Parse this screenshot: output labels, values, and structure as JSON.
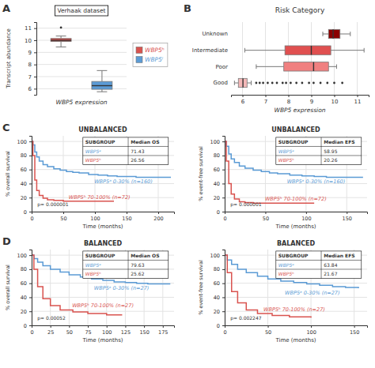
{
  "chart_data": [
    {
      "type": "box",
      "title": "Verhaak dataset",
      "xlabel": "WBP5 expression",
      "ylabel": "Transcript abundance",
      "panel_label": "A",
      "ylim": [
        5.5,
        11.5
      ],
      "yticks": [
        6,
        7,
        8,
        9,
        10,
        11
      ],
      "grid": "y",
      "legend": "right",
      "tick_labels": "y",
      "series": [
        {
          "name": "WBP5ʰ",
          "color": "#d9534f",
          "q1": 9.9,
          "median": 10.0,
          "q3": 10.15,
          "whislo": 9.45,
          "whishi": 10.35,
          "fliers": [
            11.05
          ]
        },
        {
          "name": "WBP5ˡ",
          "color": "#5b9bd5",
          "q1": 5.95,
          "median": 6.25,
          "q3": 6.6,
          "whislo": 5.75,
          "whishi": 7.5,
          "fliers": []
        }
      ]
    },
    {
      "type": "box",
      "orientation": "horizontal",
      "title": "Risk Category",
      "xlabel": "WBP5 expression",
      "panel_label": "B",
      "categories": [
        "Unknown",
        "Intermediate",
        "Poor",
        "Good"
      ],
      "colors": [
        "#8b0000",
        "#e05050",
        "#f08080",
        "#f4b8b8"
      ],
      "boxes": [
        {
          "q1": 9.75,
          "median": 9.95,
          "q3": 10.25,
          "whislo": 9.5,
          "whishi": 10.7,
          "fliers": []
        },
        {
          "q1": 7.85,
          "median": 9.0,
          "q3": 9.85,
          "whislo": 6.1,
          "whishi": 11.3,
          "fliers": []
        },
        {
          "q1": 7.8,
          "median": 9.1,
          "q3": 9.75,
          "whislo": 6.6,
          "whishi": 10.1,
          "fliers": []
        },
        {
          "q1": 5.82,
          "median": 6.02,
          "q3": 6.2,
          "whislo": 5.65,
          "whishi": 6.38,
          "fliers": [
            6.6,
            6.75,
            6.9,
            7.1,
            7.3,
            7.5,
            7.75,
            7.9,
            8.1,
            8.35,
            8.6,
            8.9,
            9.1,
            9.4,
            9.7,
            10.0,
            10.35
          ]
        }
      ],
      "xlim": [
        5.5,
        11.5
      ],
      "xticks": [
        6,
        7,
        8,
        9,
        10,
        11
      ],
      "grid": "x"
    },
    {
      "type": "step",
      "title": "UNBALANCED",
      "xlabel": "Time (months)",
      "ylabel": "% overall survival",
      "panel_label": "C",
      "xlim": [
        0,
        225
      ],
      "xticks": [
        0,
        50,
        100,
        150,
        200
      ],
      "ylim": [
        0,
        108
      ],
      "yticks": [
        0,
        20,
        40,
        60,
        80,
        100
      ],
      "grid": true,
      "annotations": [
        {
          "text": "p= 0.000001"
        }
      ],
      "series": [
        {
          "name": "WBP5ᵃ 0-30% (n=160)",
          "color": "#5b9bd5",
          "x": [
            0,
            2,
            5,
            8,
            12,
            18,
            25,
            35,
            45,
            55,
            65,
            75,
            90,
            105,
            120,
            135,
            150,
            165,
            180,
            200,
            220
          ],
          "values": [
            100,
            95,
            85,
            78,
            72,
            67,
            64,
            61,
            59,
            57,
            56,
            55,
            53,
            52,
            51,
            50,
            50,
            49,
            49,
            49,
            49
          ]
        },
        {
          "name": "WBP5ʰ 70-100% (n=72)",
          "color": "#d9534f",
          "x": [
            0,
            2,
            5,
            8,
            12,
            18,
            25,
            35,
            50,
            70,
            90,
            110,
            130
          ],
          "values": [
            100,
            80,
            45,
            30,
            23,
            19,
            17,
            16,
            15,
            15,
            15,
            15,
            15
          ]
        }
      ],
      "table": {
        "columns": [
          "SUBGROUP",
          "Median OS"
        ],
        "rows": [
          {
            "label": "WBP5ᵃ",
            "value": 71.43
          },
          {
            "label": "WBP5ʰ",
            "value": 26.56
          }
        ]
      }
    },
    {
      "type": "step",
      "title": "UNBALANCED",
      "xlabel": "Time (months)",
      "ylabel": "% event-free survival",
      "xlim": [
        0,
        175
      ],
      "xticks": [
        0,
        50,
        100,
        150
      ],
      "ylim": [
        0,
        108
      ],
      "yticks": [
        0,
        20,
        40,
        60,
        80,
        100
      ],
      "grid": true,
      "annotations": [
        {
          "text": "p= 0.000001"
        }
      ],
      "series": [
        {
          "name": "WBP5ᵃ 0-30% (n=160)",
          "color": "#5b9bd5",
          "x": [
            0,
            2,
            5,
            8,
            12,
            18,
            25,
            35,
            45,
            55,
            65,
            80,
            95,
            110,
            125,
            140,
            155,
            170
          ],
          "values": [
            100,
            93,
            82,
            75,
            70,
            65,
            62,
            59,
            57,
            55,
            54,
            52,
            51,
            50,
            49,
            49,
            49,
            49
          ]
        },
        {
          "name": "WBP5ʰ 70-100% (n=72)",
          "color": "#d9534f",
          "x": [
            0,
            2,
            5,
            8,
            12,
            18,
            25,
            35,
            50,
            70,
            90,
            110
          ],
          "values": [
            100,
            72,
            40,
            25,
            18,
            14,
            13,
            12,
            12,
            12,
            12,
            12
          ]
        }
      ],
      "table": {
        "columns": [
          "SUBGROUP",
          "Median EFS"
        ],
        "rows": [
          {
            "label": "WBP5ᵃ",
            "value": 58.95
          },
          {
            "label": "WBP5ʰ",
            "value": 20.26
          }
        ]
      }
    },
    {
      "type": "step",
      "title": "BALANCED",
      "xlabel": "Time (months)",
      "ylabel": "% overall survival",
      "panel_label": "D",
      "xlim": [
        0,
        190
      ],
      "xticks": [
        0,
        25,
        50,
        75,
        100,
        125,
        150,
        175
      ],
      "ylim": [
        0,
        108
      ],
      "yticks": [
        0,
        20,
        40,
        60,
        80,
        100
      ],
      "grid": true,
      "annotations": [
        {
          "text": "p= 0.00052"
        }
      ],
      "series": [
        {
          "name": "WBP5ᵃ 0-30% (n=27)",
          "color": "#5b9bd5",
          "x": [
            0,
            3,
            8,
            15,
            25,
            38,
            50,
            65,
            80,
            95,
            110,
            125,
            140,
            155,
            170,
            185
          ],
          "values": [
            100,
            95,
            90,
            85,
            80,
            76,
            72,
            69,
            66,
            64,
            62,
            61,
            60,
            59,
            59,
            59
          ]
        },
        {
          "name": "WBP5ʰ 70-100% (n=27)",
          "color": "#d9534f",
          "x": [
            0,
            3,
            8,
            15,
            25,
            38,
            55,
            75,
            100,
            120
          ],
          "values": [
            100,
            80,
            55,
            38,
            28,
            22,
            19,
            17,
            15,
            14
          ]
        }
      ],
      "table": {
        "columns": [
          "SUBGROUP",
          "Median OS"
        ],
        "rows": [
          {
            "label": "WBP5ᵃ",
            "value": 79.63
          },
          {
            "label": "WBP5ʰ",
            "value": 25.62
          }
        ]
      }
    },
    {
      "type": "step",
      "title": "BALANCED",
      "xlabel": "Time (months)",
      "ylabel": "% event-free survival",
      "xlim": [
        0,
        165
      ],
      "xticks": [
        0,
        50,
        100,
        150
      ],
      "ylim": [
        0,
        108
      ],
      "yticks": [
        0,
        20,
        40,
        60,
        80,
        100
      ],
      "grid": true,
      "annotations": [
        {
          "text": "p= 0.002247"
        }
      ],
      "series": [
        {
          "name": "WBP5ᵃ 0-30% (n=27)",
          "color": "#5b9bd5",
          "x": [
            0,
            3,
            8,
            15,
            25,
            38,
            50,
            65,
            80,
            95,
            110,
            125,
            140,
            155
          ],
          "values": [
            100,
            93,
            87,
            80,
            75,
            70,
            66,
            63,
            61,
            59,
            57,
            55,
            54,
            53
          ]
        },
        {
          "name": "WBP5ʰ 70-100% (n=27)",
          "color": "#d9534f",
          "x": [
            0,
            3,
            8,
            15,
            25,
            38,
            55,
            75,
            100
          ],
          "values": [
            100,
            75,
            48,
            32,
            22,
            17,
            14,
            12,
            11
          ]
        }
      ],
      "table": {
        "columns": [
          "SUBGROUP",
          "Median EFS"
        ],
        "rows": [
          {
            "label": "WBP5ᵃ",
            "value": 63.84
          },
          {
            "label": "WBP5ʰ",
            "value": 21.67
          }
        ]
      }
    }
  ]
}
